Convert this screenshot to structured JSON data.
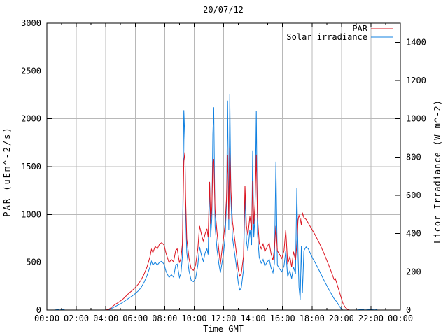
{
  "window": {
    "title": "20/07/12"
  },
  "colors": {
    "par": "#dc1420",
    "solar": "#1080e0",
    "grid": "#b8b8b8",
    "axis": "#000000",
    "background": "#ffffff"
  },
  "chart_data": {
    "type": "line",
    "title": "20/07/12",
    "xlabel": "Time GMT",
    "ylabel_left": "PAR (uEm^-2/s)",
    "ylabel_right": "Licor Irradiance (W m^-2)",
    "grid": true,
    "x_range_hours": [
      0,
      24
    ],
    "x_major_step_hours": 2,
    "x_minor_step_hours": 1,
    "x_tick_labels": [
      "00:00",
      "02:00",
      "04:00",
      "06:00",
      "08:00",
      "10:00",
      "12:00",
      "14:00",
      "16:00",
      "18:00",
      "20:00",
      "22:00",
      "00:00"
    ],
    "ylim_left": [
      0,
      3000
    ],
    "yticks_left": [
      0,
      500,
      1000,
      1500,
      2000,
      2500,
      3000
    ],
    "ylim_right": [
      0,
      1500
    ],
    "yticks_right": [
      0,
      200,
      400,
      600,
      800,
      1000,
      1200,
      1400
    ],
    "legend": {
      "position": "top-right-inside",
      "entries": [
        {
          "label": "PAR",
          "color": "#dc1420"
        },
        {
          "label": "Solar irradiance",
          "color": "#1080e0"
        }
      ]
    },
    "x": [
      0.0,
      0.5,
      0.8,
      0.85,
      1.15,
      1.2,
      1.5,
      2.0,
      2.5,
      3.0,
      3.5,
      4.0,
      4.2,
      4.4,
      4.6,
      4.8,
      5.0,
      5.2,
      5.4,
      5.6,
      5.8,
      6.0,
      6.2,
      6.4,
      6.6,
      6.8,
      7.0,
      7.1,
      7.2,
      7.35,
      7.5,
      7.65,
      7.8,
      7.95,
      8.1,
      8.3,
      8.45,
      8.6,
      8.75,
      8.85,
      9.0,
      9.1,
      9.2,
      9.3,
      9.37,
      9.42,
      9.5,
      9.65,
      9.8,
      9.95,
      10.1,
      10.25,
      10.37,
      10.5,
      10.62,
      10.75,
      10.87,
      10.95,
      11.05,
      11.12,
      11.2,
      11.27,
      11.33,
      11.42,
      11.55,
      11.68,
      11.78,
      11.9,
      12.0,
      12.1,
      12.2,
      12.27,
      12.35,
      12.42,
      12.5,
      12.6,
      12.72,
      12.85,
      13.0,
      13.1,
      13.2,
      13.35,
      13.45,
      13.55,
      13.65,
      13.78,
      13.9,
      13.97,
      14.05,
      14.13,
      14.22,
      14.3,
      14.42,
      14.55,
      14.68,
      14.8,
      14.95,
      15.1,
      15.22,
      15.35,
      15.45,
      15.55,
      15.65,
      15.8,
      15.95,
      16.1,
      16.22,
      16.35,
      16.5,
      16.62,
      16.75,
      16.88,
      16.97,
      17.05,
      17.12,
      17.2,
      17.28,
      17.35,
      17.45,
      17.6,
      17.75,
      17.9,
      18.05,
      18.2,
      18.35,
      18.5,
      18.65,
      18.8,
      18.95,
      19.1,
      19.25,
      19.4,
      19.5,
      19.58,
      19.65,
      19.75,
      19.9,
      20.0,
      20.1,
      20.25,
      20.4,
      20.55,
      21.0,
      21.5,
      21.55,
      22.3,
      22.35,
      22.45,
      23.0,
      23.5,
      24.0
    ],
    "series": [
      {
        "name": "Solar irradiance",
        "axis": "right",
        "units": "W m^-2",
        "color": "#1080e0",
        "values": [
          0,
          0,
          3,
          0,
          4,
          0,
          0,
          0,
          0,
          0,
          0,
          0,
          2,
          9,
          17,
          25,
          33,
          42,
          53,
          64,
          74,
          86,
          100,
          118,
          145,
          180,
          225,
          255,
          235,
          250,
          235,
          250,
          255,
          240,
          200,
          170,
          185,
          172,
          235,
          240,
          170,
          190,
          280,
          1045,
          890,
          510,
          300,
          205,
          155,
          148,
          165,
          235,
          330,
          285,
          255,
          300,
          320,
          290,
          670,
          380,
          480,
          920,
          1060,
          440,
          320,
          240,
          195,
          250,
          300,
          380,
          560,
          1095,
          420,
          1130,
          580,
          380,
          310,
          240,
          140,
          105,
          115,
          210,
          600,
          360,
          310,
          420,
          340,
          835,
          380,
          490,
          1040,
          400,
          275,
          245,
          265,
          230,
          250,
          265,
          220,
          195,
          245,
          776,
          235,
          215,
          200,
          230,
          310,
          175,
          205,
          165,
          225,
          190,
          640,
          300,
          120,
          55,
          335,
          90,
          310,
          330,
          320,
          295,
          270,
          250,
          228,
          205,
          182,
          158,
          136,
          114,
          93,
          73,
          60,
          52,
          46,
          34,
          16,
          5,
          0,
          0,
          0,
          0,
          0,
          4,
          0,
          5,
          3,
          0,
          0,
          0,
          0
        ]
      },
      {
        "name": "PAR",
        "axis": "left",
        "units": "uEm^-2/s",
        "color": "#dc1420",
        "values": [
          0,
          0,
          0,
          0,
          0,
          0,
          0,
          0,
          0,
          0,
          0,
          0,
          8,
          30,
          55,
          75,
          95,
          120,
          150,
          180,
          205,
          235,
          270,
          315,
          375,
          450,
          555,
          635,
          600,
          665,
          640,
          690,
          705,
          680,
          590,
          495,
          530,
          505,
          625,
          640,
          495,
          540,
          690,
          1560,
          1650,
          1180,
          740,
          540,
          430,
          415,
          470,
          640,
          880,
          790,
          720,
          800,
          850,
          760,
          1340,
          900,
          1080,
          1550,
          1580,
          1050,
          820,
          620,
          480,
          640,
          760,
          900,
          1180,
          1620,
          950,
          1700,
          1250,
          930,
          780,
          620,
          420,
          355,
          380,
          560,
          1300,
          880,
          780,
          980,
          840,
          1350,
          900,
          1100,
          1625,
          980,
          700,
          640,
          690,
          610,
          660,
          700,
          590,
          520,
          650,
          880,
          620,
          580,
          540,
          620,
          840,
          480,
          560,
          450,
          610,
          520,
          680,
          940,
          990,
          960,
          890,
          1020,
          965,
          950,
          910,
          870,
          830,
          790,
          745,
          700,
          650,
          598,
          542,
          484,
          424,
          362,
          318,
          330,
          295,
          245,
          172,
          120,
          72,
          30,
          8,
          0,
          0,
          0,
          0,
          0,
          0,
          0,
          0,
          0,
          0
        ]
      }
    ]
  }
}
